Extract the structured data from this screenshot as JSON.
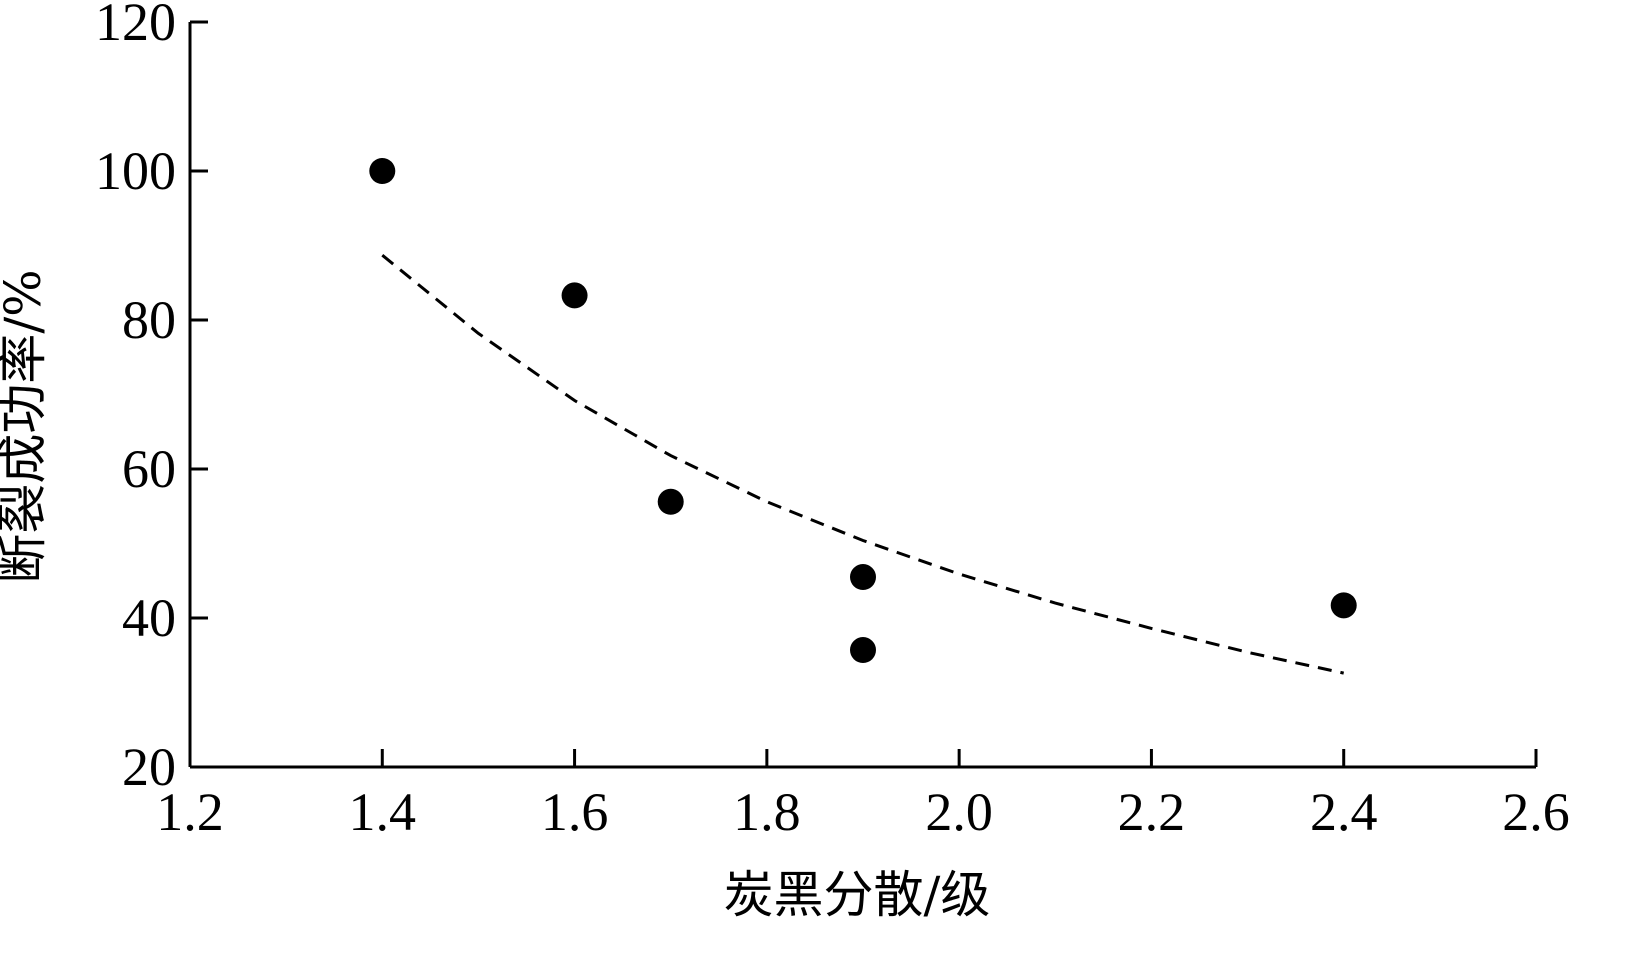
{
  "chart_data": {
    "type": "scatter",
    "xlabel": "炭黑分散/级",
    "ylabel": "断裂成功率/%",
    "xlim": [
      1.2,
      2.6
    ],
    "ylim": [
      20,
      120
    ],
    "xticks": [
      1.2,
      1.4,
      1.6,
      1.8,
      2.0,
      2.2,
      2.4,
      2.6
    ],
    "xtick_labels": [
      "1.2",
      "1.4",
      "1.6",
      "1.8",
      "2.0",
      "2.2",
      "2.4",
      "2.6"
    ],
    "yticks": [
      20,
      40,
      60,
      80,
      100,
      120
    ],
    "ytick_labels": [
      "20",
      "40",
      "60",
      "80",
      "100",
      "120"
    ],
    "grid": false,
    "series": [
      {
        "marker": "filled-circle",
        "color": "#000000",
        "points": [
          {
            "x": 1.4,
            "y": 100
          },
          {
            "x": 1.6,
            "y": 83.3
          },
          {
            "x": 1.7,
            "y": 55.6
          },
          {
            "x": 1.9,
            "y": 45.5
          },
          {
            "x": 1.9,
            "y": 35.7
          },
          {
            "x": 2.4,
            "y": 41.7
          }
        ]
      }
    ],
    "trendline": {
      "style": "dashed",
      "color": "#000000",
      "points": [
        {
          "x": 1.4,
          "y": 88.7
        },
        {
          "x": 1.5,
          "y": 78.2
        },
        {
          "x": 1.6,
          "y": 69.2
        },
        {
          "x": 1.7,
          "y": 61.8
        },
        {
          "x": 1.8,
          "y": 55.6
        },
        {
          "x": 1.9,
          "y": 50.4
        },
        {
          "x": 2.0,
          "y": 45.9
        },
        {
          "x": 2.1,
          "y": 42.0
        },
        {
          "x": 2.2,
          "y": 38.6
        },
        {
          "x": 2.3,
          "y": 35.4
        },
        {
          "x": 2.4,
          "y": 32.6
        }
      ]
    }
  }
}
